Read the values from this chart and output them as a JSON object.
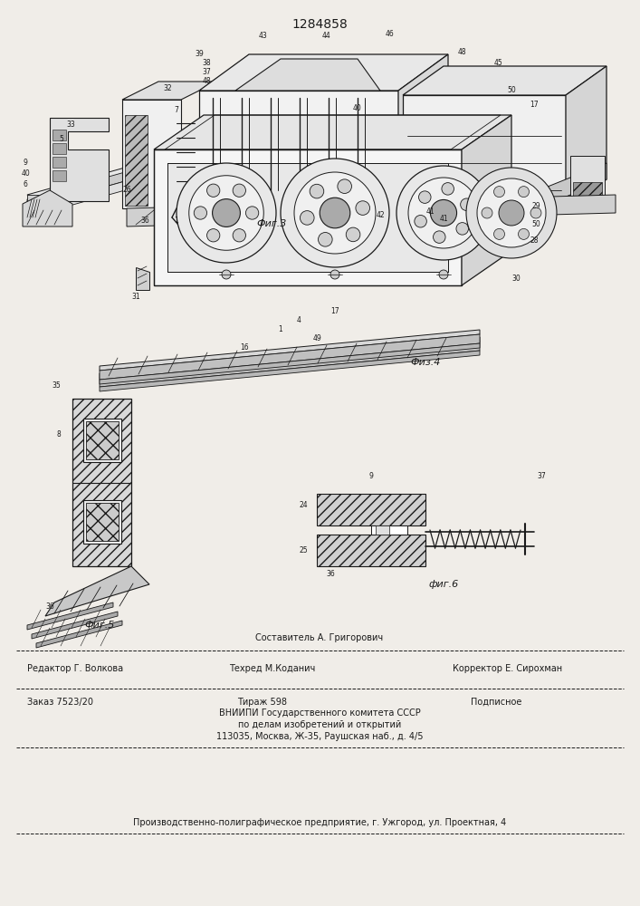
{
  "title": "1284858",
  "bg_color": "#f0ede8",
  "line_color": "#1a1a1a",
  "fig3_label": "Фиг.3",
  "fig4_label": "Физ.4",
  "fig5_label": "Фиг.5",
  "fig6_label": "фиг.6",
  "footer_sestavitel": "Составитель А. Григорович",
  "footer_editor": "Редактор Г. Волкова",
  "footer_tekhred": "Техред М.Коданич",
  "footer_korrektor": "Корректор Е. Сирохман",
  "footer_zakaz": "Заказ 7523/20",
  "footer_tirazh": "Тираж 598",
  "footer_podpisnoe": "Подписное",
  "footer_vniipи": "ВНИИПИ Государственного комитета СССР",
  "footer_po_delam": "по делам изобретений и открытий",
  "footer_address": "113035, Москва, Ж-35, Раушская наб., д. 4/5",
  "footer_predpr": "Производственно-полиграфическое предприятие, г. Ужгород, ул. Проектная, 4"
}
